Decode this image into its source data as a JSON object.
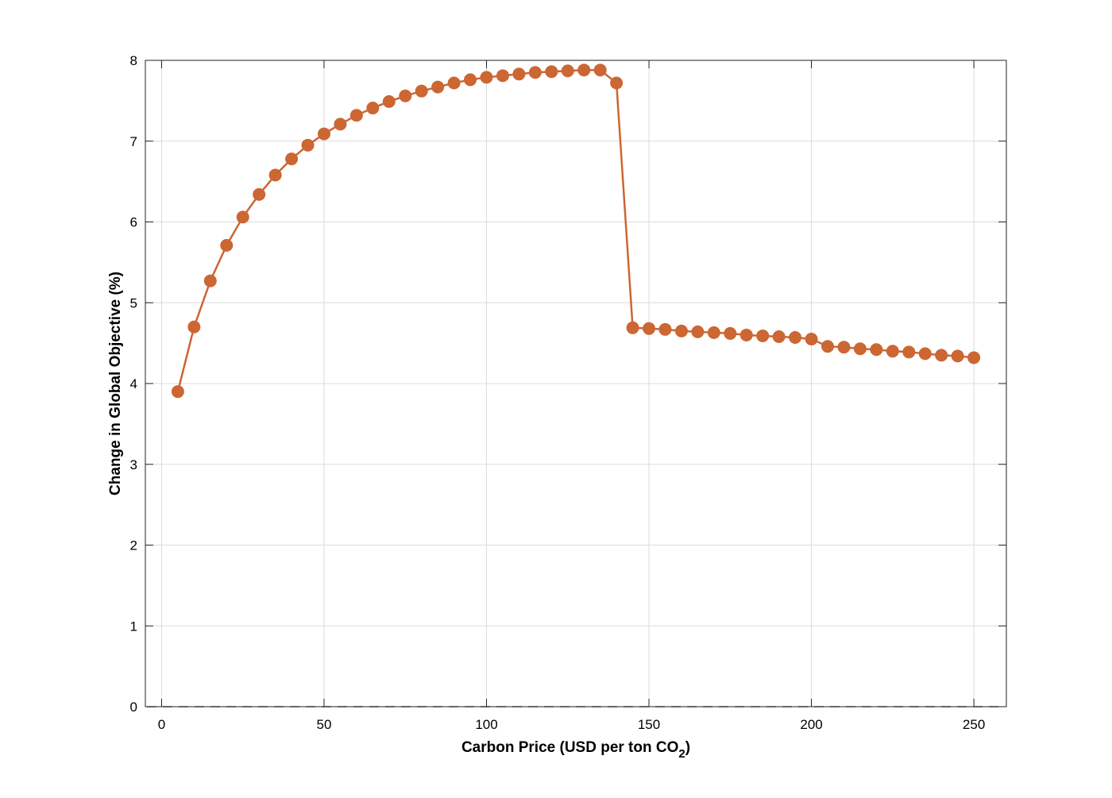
{
  "chart_data": {
    "type": "line",
    "xlabel": {
      "text": "Carbon Price (USD per ton CO",
      "sub": "2",
      "tail": ")"
    },
    "ylabel": "Change in Global Objective (%)",
    "x": [
      5,
      10,
      15,
      20,
      25,
      30,
      35,
      40,
      45,
      50,
      55,
      60,
      65,
      70,
      75,
      80,
      85,
      90,
      95,
      100,
      105,
      110,
      115,
      120,
      125,
      130,
      135,
      140,
      145,
      150,
      155,
      160,
      165,
      170,
      175,
      180,
      185,
      190,
      195,
      200,
      205,
      210,
      215,
      220,
      225,
      230,
      235,
      240,
      245,
      250
    ],
    "series": [
      {
        "color": "#cc6633",
        "values": [
          3.9,
          4.7,
          5.27,
          5.71,
          6.06,
          6.34,
          6.58,
          6.78,
          6.95,
          7.09,
          7.21,
          7.32,
          7.41,
          7.49,
          7.56,
          7.62,
          7.67,
          7.72,
          7.76,
          7.79,
          7.81,
          7.83,
          7.85,
          7.86,
          7.87,
          7.88,
          7.88,
          7.72,
          4.69,
          4.68,
          4.67,
          4.65,
          4.64,
          4.63,
          4.62,
          4.6,
          4.59,
          4.58,
          4.57,
          4.55,
          4.46,
          4.45,
          4.43,
          4.42,
          4.4,
          4.39,
          4.37,
          4.35,
          4.34,
          4.32
        ]
      }
    ],
    "reference_line": 0,
    "xlim": [
      -5,
      260
    ],
    "xticks": [
      0,
      50,
      100,
      150,
      200,
      250
    ],
    "ylim": [
      0,
      8
    ],
    "yticks": [
      0,
      1,
      2,
      3,
      4,
      5,
      6,
      7,
      8
    ],
    "grid": true
  }
}
